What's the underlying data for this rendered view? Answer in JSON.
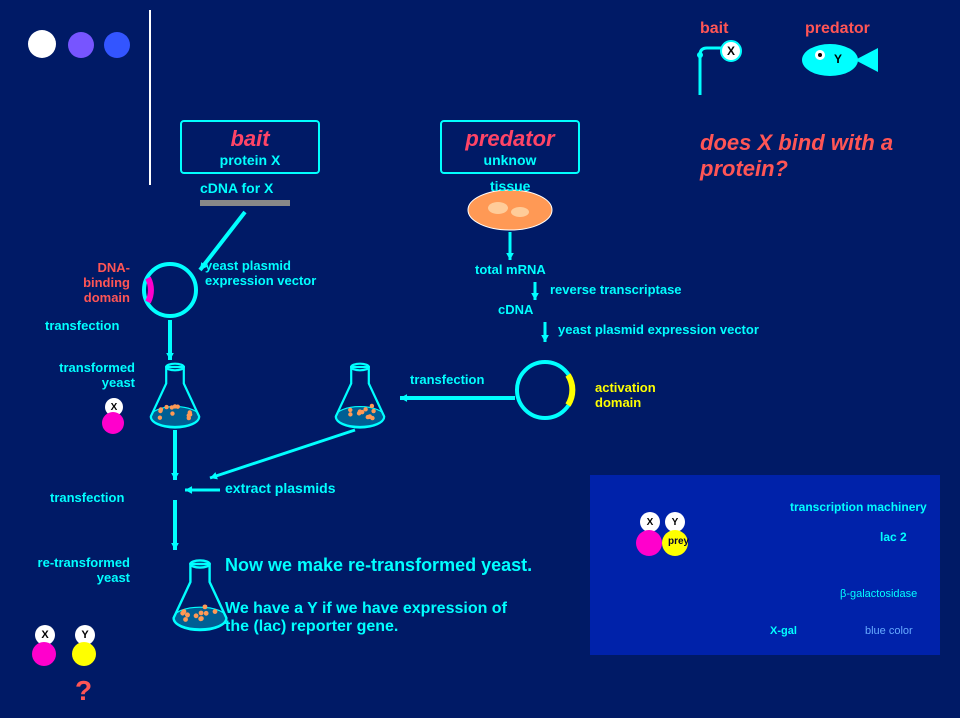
{
  "bg": "#001a66",
  "colors": {
    "cyan": "#00ffff",
    "white": "#ffffff",
    "yellow": "#ffff00",
    "red": "#ff4466",
    "magenta": "#ff00cc",
    "purple": "#7755ff",
    "blue": "#3355ff",
    "orange": "#ff9955",
    "green": "#55ff55",
    "darkblue": "#0033aa"
  },
  "top": {
    "bait_small": "bait",
    "predator_small": "predator",
    "x": "X",
    "y": "Y"
  },
  "bait_box": {
    "title": "bait",
    "sub": "protein X"
  },
  "cdna_for_x": "cDNA for X",
  "predator_box": {
    "title": "predator",
    "sub": "unknow"
  },
  "tissue": "tissue",
  "question": "does X bind with a protein?",
  "left": {
    "dna_binding": "DNA-\nbinding\ndomain",
    "transfection1": "transfection",
    "yeast_plasmid": "yeast plasmid\nexpression vector",
    "transformed": "transformed\nyeast",
    "x": "X",
    "transfection2": "transfection",
    "re_transformed": "re-transformed\nyeast",
    "x2": "X",
    "y2": "Y",
    "q": "?"
  },
  "mid": {
    "total_mrna": "total mRNA",
    "reverse": "reverse transcriptase",
    "cdna": "cDNA",
    "yeast_plasmid2": "yeast plasmid expression vector",
    "transfection3": "transfection",
    "activation": "activation\ndomain"
  },
  "bottom": {
    "extract": "extract plasmids",
    "line1": "Now we make re-transformed yeast.",
    "line2": "We have a Y if we have expression of\nthe (lac) reporter gene."
  },
  "right_panel": {
    "x": "X",
    "y": "Y",
    "prey": "prey",
    "trans_mach": "transcription machinery",
    "lac2": "lac 2",
    "beta": "β-galactosidase",
    "xgal": "X-gal",
    "blue": "blue color"
  }
}
